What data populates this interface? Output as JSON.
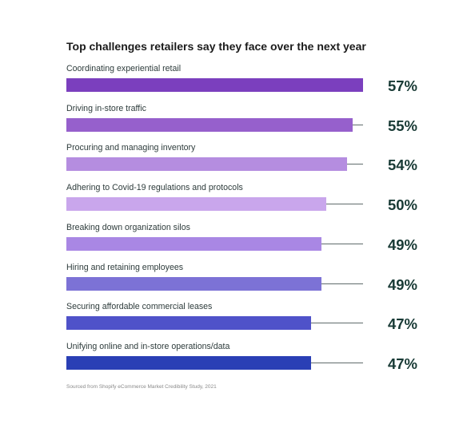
{
  "chart_data": {
    "type": "bar",
    "orientation": "horizontal",
    "title": "Top challenges retailers say they face over the next year",
    "categories": [
      "Coordinating experiential retail",
      "Driving in-store traffic",
      "Procuring and managing inventory",
      "Adhering to Covid-19 regulations and protocols",
      "Breaking down organization silos",
      "Hiring and retaining employees",
      "Securing affordable commercial leases",
      "Unifying online and in-store operations/data"
    ],
    "values": [
      57,
      55,
      54,
      50,
      49,
      49,
      47,
      47
    ],
    "value_labels": [
      "57%",
      "55%",
      "54%",
      "50%",
      "49%",
      "49%",
      "47%",
      "47%"
    ],
    "bar_colors": [
      "#7b3fbe",
      "#9660cc",
      "#b58de0",
      "#c9a6ec",
      "#a987e4",
      "#7c72d6",
      "#4f52c9",
      "#2a3fb5"
    ],
    "value_label_color": "#183a35",
    "grid": false,
    "legend": "none",
    "source": "Sourced from Shopify eCommerce Market Credibility Study, 2021"
  }
}
